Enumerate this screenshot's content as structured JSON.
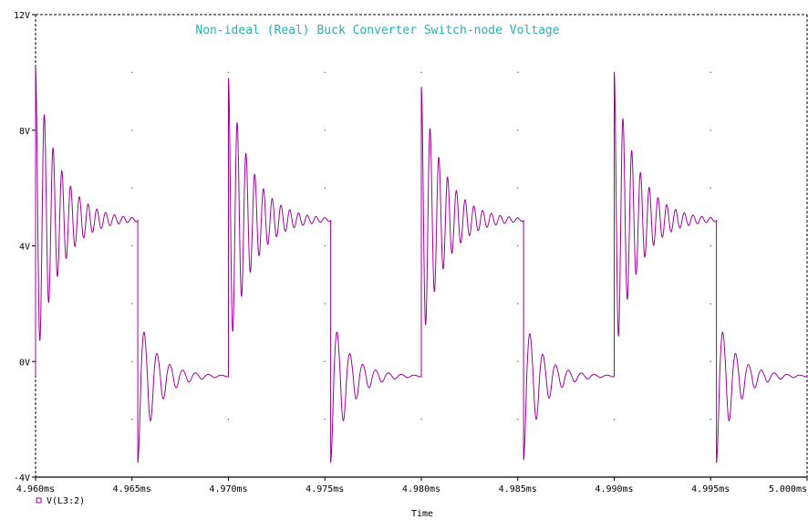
{
  "chart_data": {
    "type": "line",
    "title": "Non-ideal (Real) Buck Converter Switch-node Voltage",
    "xlabel": "Time",
    "ylabel": "",
    "x_unit": "ms",
    "y_unit": "V",
    "xlim": [
      4.96,
      5.0
    ],
    "ylim": [
      -4,
      12
    ],
    "x_ticks": [
      4.96,
      4.965,
      4.97,
      4.975,
      4.98,
      4.985,
      4.99,
      4.995,
      5.0
    ],
    "x_tick_labels": [
      "4.960ms",
      "4.965ms",
      "4.970ms",
      "4.975ms",
      "4.980ms",
      "4.985ms",
      "4.990ms",
      "4.995ms",
      "5.000ms"
    ],
    "y_ticks": [
      -4,
      0,
      4,
      8,
      12
    ],
    "y_tick_labels": [
      "-4V",
      "0V",
      "4V",
      "8V",
      "12V"
    ],
    "grid": "dotted",
    "legend": "bottom-left",
    "series": [
      {
        "name": "V(L3:2)",
        "color": "#a000a0",
        "marker": "square",
        "period_ms": 0.01,
        "on_duration_ms": 0.0053,
        "high_level": 4.9,
        "low_level": -0.5,
        "cycles": [
          {
            "rise_at": 4.96,
            "fall_at": 4.9653,
            "overshoot_peak": 10.2,
            "undershoot_peak": -3.5
          },
          {
            "rise_at": 4.97,
            "fall_at": 4.9753,
            "overshoot_peak": 9.8,
            "undershoot_peak": -3.5
          },
          {
            "rise_at": 4.98,
            "fall_at": 4.9853,
            "overshoot_peak": 9.5,
            "undershoot_peak": -3.4
          },
          {
            "rise_at": 4.99,
            "fall_at": 4.9953,
            "overshoot_peak": 10.0,
            "undershoot_peak": -3.5
          }
        ]
      }
    ]
  }
}
